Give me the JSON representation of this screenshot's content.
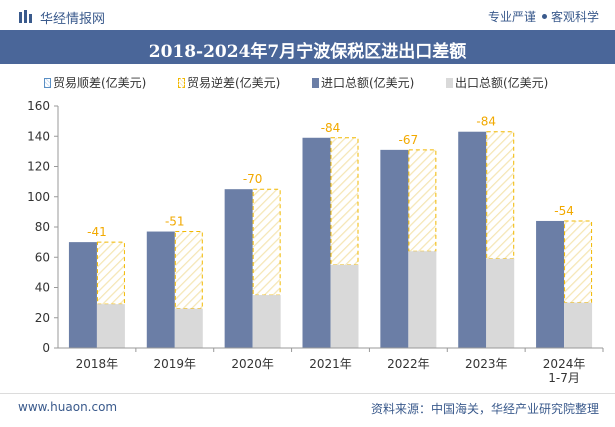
{
  "header": {
    "brand": "华经情报网",
    "tag_left": "专业严谨",
    "tag_right": "客观科学"
  },
  "chart_data": {
    "type": "bar",
    "title": "2018-2024年7月宁波保税区进出口差额",
    "categories": [
      "2018年",
      "2019年",
      "2020年",
      "2021年",
      "2022年",
      "2023年",
      "2024年\n1-7月"
    ],
    "series": [
      {
        "name": "贸易顺差(亿美元)",
        "values": [
          null,
          null,
          null,
          null,
          null,
          null,
          null
        ]
      },
      {
        "name": "贸易逆差(亿美元)",
        "values": [
          -41,
          -51,
          -70,
          -84,
          -67,
          -84,
          -54
        ]
      },
      {
        "name": "进口总额(亿美元)",
        "values": [
          70,
          77,
          105,
          139,
          131,
          143,
          84
        ]
      },
      {
        "name": "出口总额(亿美元)",
        "values": [
          29,
          26,
          35,
          55,
          64,
          59,
          30
        ]
      }
    ],
    "ylim": [
      0,
      160
    ],
    "yticks": [
      0,
      20,
      40,
      60,
      80,
      100,
      120,
      140,
      160
    ],
    "colors": {
      "surplus": "#5a8fc4",
      "deficit": "#f2b800",
      "import": "#6b7ea6",
      "export": "#d9d9d9",
      "label": "#f2a900"
    },
    "legend_position": "top"
  },
  "footer": {
    "website": "www.huaon.com",
    "source": "资料来源：中国海关，华经产业研究院整理"
  }
}
